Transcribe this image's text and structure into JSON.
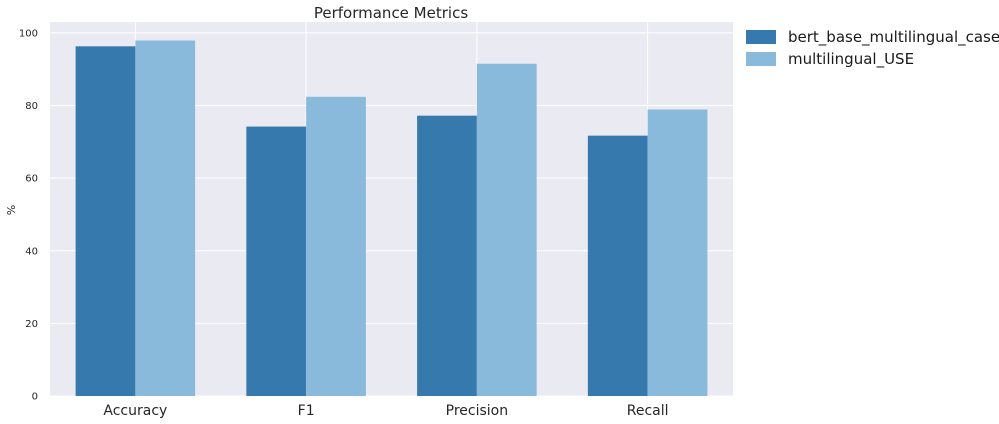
{
  "chart_data": {
    "type": "bar",
    "title": "Performance Metrics",
    "xlabel": "",
    "ylabel": "%",
    "categories": [
      "Accuracy",
      "F1",
      "Precision",
      "Recall"
    ],
    "series": [
      {
        "name": "bert_base_multilingual_cased",
        "color": "#3679ac",
        "values": [
          96.3,
          74.2,
          77.2,
          71.7
        ]
      },
      {
        "name": "multilingual_USE",
        "color": "#89b9db",
        "values": [
          97.9,
          82.4,
          91.5,
          78.9
        ]
      }
    ],
    "ylim": [
      0,
      103
    ],
    "yticks": [
      0,
      20,
      40,
      60,
      80,
      100
    ],
    "grid": true,
    "legend_position": "outside-top-right",
    "background": "#eaeaf2"
  }
}
